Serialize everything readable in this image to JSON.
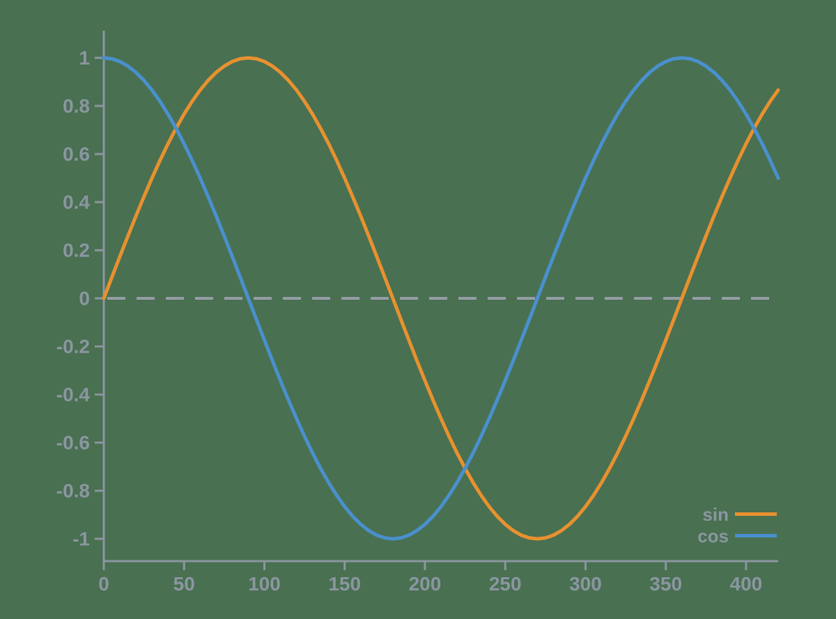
{
  "background_color": "#497051",
  "colors": {
    "axis": "#8B96A1",
    "tick_label": "#8B96A1",
    "legend_label": "#8B96A1",
    "zero_line": "#959DA6"
  },
  "chart_data": {
    "type": "line",
    "title": "",
    "xlabel": "",
    "ylabel": "",
    "xlim": [
      0,
      420
    ],
    "ylim": [
      -1,
      1
    ],
    "grid": false,
    "zero_line_style": "dashed",
    "legend_position": "bottom-right",
    "x_ticks": [
      {
        "value": 0,
        "label": "0"
      },
      {
        "value": 50,
        "label": "50"
      },
      {
        "value": 100,
        "label": "100"
      },
      {
        "value": 150,
        "label": "150"
      },
      {
        "value": 200,
        "label": "200"
      },
      {
        "value": 250,
        "label": "250"
      },
      {
        "value": 300,
        "label": "300"
      },
      {
        "value": 350,
        "label": "350"
      },
      {
        "value": 400,
        "label": "400"
      }
    ],
    "y_ticks": [
      {
        "value": 1,
        "label": "1"
      },
      {
        "value": 0.8,
        "label": "0.8"
      },
      {
        "value": 0.6,
        "label": "0.6"
      },
      {
        "value": 0.4,
        "label": "0.4"
      },
      {
        "value": 0.2,
        "label": "0.2"
      },
      {
        "value": 0,
        "label": "0"
      },
      {
        "value": -0.2,
        "label": "-0.2"
      },
      {
        "value": -0.4,
        "label": "-0.4"
      },
      {
        "value": -0.6,
        "label": "-0.6"
      },
      {
        "value": -0.8,
        "label": "-0.8"
      },
      {
        "value": -1,
        "label": "-1"
      }
    ],
    "x_start": 0,
    "x_step": 5,
    "series": [
      {
        "name": "sin",
        "color": "#E8912F",
        "values": [
          0,
          0.0872,
          0.1736,
          0.2588,
          0.342,
          0.4226,
          0.5,
          0.5736,
          0.6428,
          0.7071,
          0.766,
          0.8192,
          0.866,
          0.9063,
          0.9397,
          0.9659,
          0.9848,
          0.9962,
          1,
          0.9962,
          0.9848,
          0.9659,
          0.9397,
          0.9063,
          0.866,
          0.8192,
          0.766,
          0.7071,
          0.6428,
          0.5736,
          0.5,
          0.4226,
          0.342,
          0.2588,
          0.1736,
          0.0872,
          0,
          -0.0872,
          -0.1736,
          -0.2588,
          -0.342,
          -0.4226,
          -0.5,
          -0.5736,
          -0.6428,
          -0.7071,
          -0.766,
          -0.8192,
          -0.866,
          -0.9063,
          -0.9397,
          -0.9659,
          -0.9848,
          -0.9962,
          -1,
          -0.9962,
          -0.9848,
          -0.9659,
          -0.9397,
          -0.9063,
          -0.866,
          -0.8192,
          -0.766,
          -0.7071,
          -0.6428,
          -0.5736,
          -0.5,
          -0.4226,
          -0.342,
          -0.2588,
          -0.1736,
          -0.0872,
          0,
          0.0872,
          0.1736,
          0.2588,
          0.342,
          0.4226,
          0.5,
          0.5736,
          0.6428,
          0.7071,
          0.766,
          0.8192,
          0.866
        ]
      },
      {
        "name": "cos",
        "color": "#4A90CE",
        "values": [
          1,
          0.9962,
          0.9848,
          0.9659,
          0.9397,
          0.9063,
          0.866,
          0.8192,
          0.766,
          0.7071,
          0.6428,
          0.5736,
          0.5,
          0.4226,
          0.342,
          0.2588,
          0.1736,
          0.0872,
          0,
          -0.0872,
          -0.1736,
          -0.2588,
          -0.342,
          -0.4226,
          -0.5,
          -0.5736,
          -0.6428,
          -0.7071,
          -0.766,
          -0.8192,
          -0.866,
          -0.9063,
          -0.9397,
          -0.9659,
          -0.9848,
          -0.9962,
          -1,
          -0.9962,
          -0.9848,
          -0.9659,
          -0.9397,
          -0.9063,
          -0.866,
          -0.8192,
          -0.766,
          -0.7071,
          -0.6428,
          -0.5736,
          -0.5,
          -0.4226,
          -0.342,
          -0.2588,
          -0.1736,
          -0.0872,
          0,
          0.0872,
          0.1736,
          0.2588,
          0.342,
          0.4226,
          0.5,
          0.5736,
          0.6428,
          0.7071,
          0.766,
          0.8192,
          0.866,
          0.9063,
          0.9397,
          0.9659,
          0.9848,
          0.9962,
          1,
          0.9962,
          0.9848,
          0.9659,
          0.9397,
          0.9063,
          0.866,
          0.8192,
          0.766,
          0.7071,
          0.6428,
          0.5736,
          0.5
        ]
      }
    ]
  }
}
